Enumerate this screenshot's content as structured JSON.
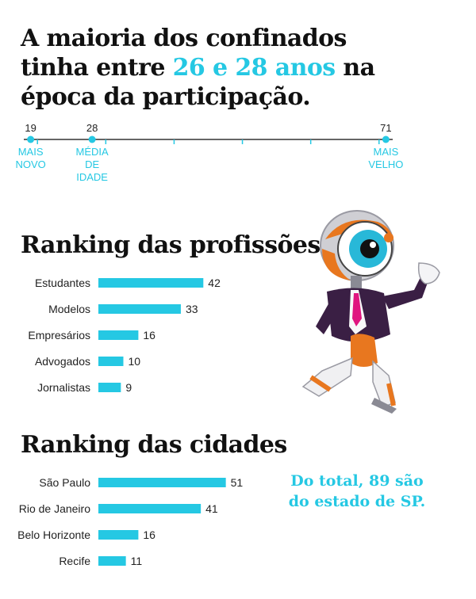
{
  "header": {
    "title_part1": "A maioria dos confinados tinha entre ",
    "title_highlight": "26 e 28 anos",
    "title_part2": " na época da participação."
  },
  "timeline": {
    "range": [
      18,
      72
    ],
    "markers": [
      {
        "value": 19,
        "number": "19",
        "lines": [
          "MAIS",
          "NOVO"
        ]
      },
      {
        "value": 28,
        "number": "28",
        "lines": [
          "MÉDIA",
          "DE",
          "IDADE"
        ]
      },
      {
        "value": 71,
        "number": "71",
        "lines": [
          "MAIS",
          "VELHO"
        ]
      }
    ]
  },
  "colors": {
    "accent": "#25c8e3",
    "text": "#111111"
  },
  "chart_data": [
    {
      "type": "bar",
      "orientation": "horizontal",
      "title": "Ranking das profissões:",
      "categories": [
        "Estudantes",
        "Modelos",
        "Empresários",
        "Advogados",
        "Jornalistas"
      ],
      "values": [
        42,
        33,
        16,
        10,
        9
      ]
    },
    {
      "type": "bar",
      "orientation": "horizontal",
      "title": "Ranking das cidades",
      "categories": [
        "São Paulo",
        "Rio de Janeiro",
        "Belo Horizonte",
        "Recife"
      ],
      "values": [
        51,
        41,
        16,
        11
      ]
    }
  ],
  "note": {
    "line1": "Do total, 89 são",
    "line2": "do estado de SP."
  },
  "mascot_icon": "big-brother-eye-mascot"
}
